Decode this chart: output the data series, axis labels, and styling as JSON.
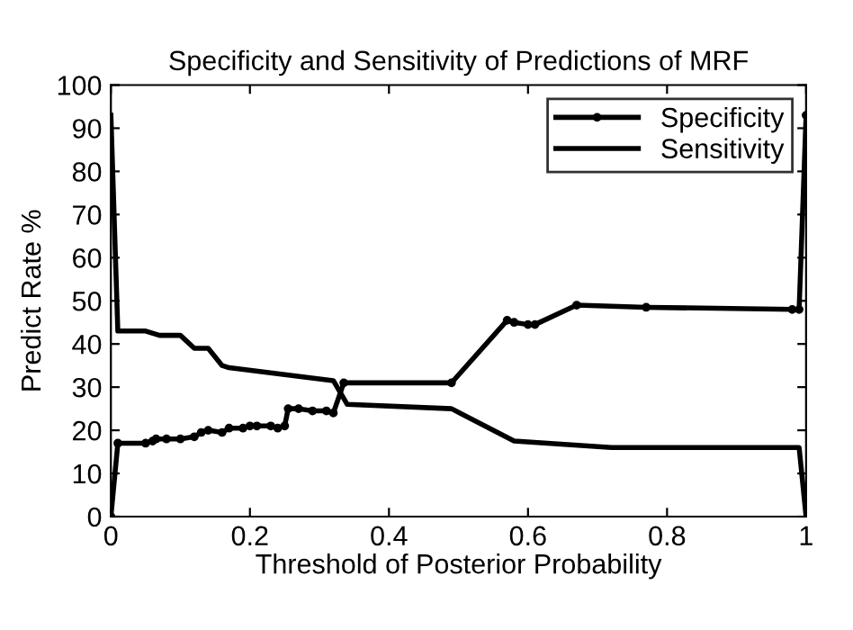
{
  "chart_data": {
    "type": "line",
    "title": "Specificity and Sensitivity of Predictions of MRF",
    "xlabel": "Threshold of Posterior Probability",
    "ylabel": "Predict Rate %",
    "xlim": [
      0,
      1
    ],
    "xticks": [
      0,
      0.2,
      0.4,
      0.6,
      0.8,
      1
    ],
    "ylim": [
      0,
      100
    ],
    "yticks": [
      0,
      10,
      20,
      30,
      40,
      50,
      60,
      70,
      80,
      90,
      100
    ],
    "grid": false,
    "legend": "top right",
    "series": [
      {
        "name": "Specificity",
        "color": "#000000",
        "marker": "circle",
        "x": [
          0,
          0.01,
          0.05,
          0.06,
          0.065,
          0.08,
          0.1,
          0.12,
          0.13,
          0.14,
          0.16,
          0.17,
          0.19,
          0.2,
          0.21,
          0.23,
          0.24,
          0.25,
          0.255,
          0.27,
          0.29,
          0.31,
          0.32,
          0.335,
          0.49,
          0.57,
          0.58,
          0.6,
          0.61,
          0.67,
          0.77,
          0.98,
          0.99,
          1
        ],
        "values": [
          0,
          17,
          17,
          17.5,
          18,
          18,
          18,
          18.5,
          19.5,
          20,
          19.5,
          20.5,
          20.5,
          21,
          21,
          21,
          20.5,
          21,
          25,
          25,
          24.5,
          24.5,
          24,
          31,
          31,
          45.5,
          45,
          44.5,
          44.5,
          49,
          48.5,
          48,
          48,
          93
        ]
      },
      {
        "name": "Sensitivity",
        "color": "#000000",
        "marker": "none",
        "x": [
          0,
          0.01,
          0.05,
          0.07,
          0.1,
          0.12,
          0.14,
          0.16,
          0.17,
          0.32,
          0.34,
          0.49,
          0.58,
          0.72,
          0.98,
          0.99,
          1
        ],
        "values": [
          93,
          43,
          43,
          42,
          42,
          39,
          39,
          35,
          34.5,
          31.5,
          26,
          25,
          17.5,
          16,
          16,
          16,
          0
        ]
      }
    ]
  }
}
